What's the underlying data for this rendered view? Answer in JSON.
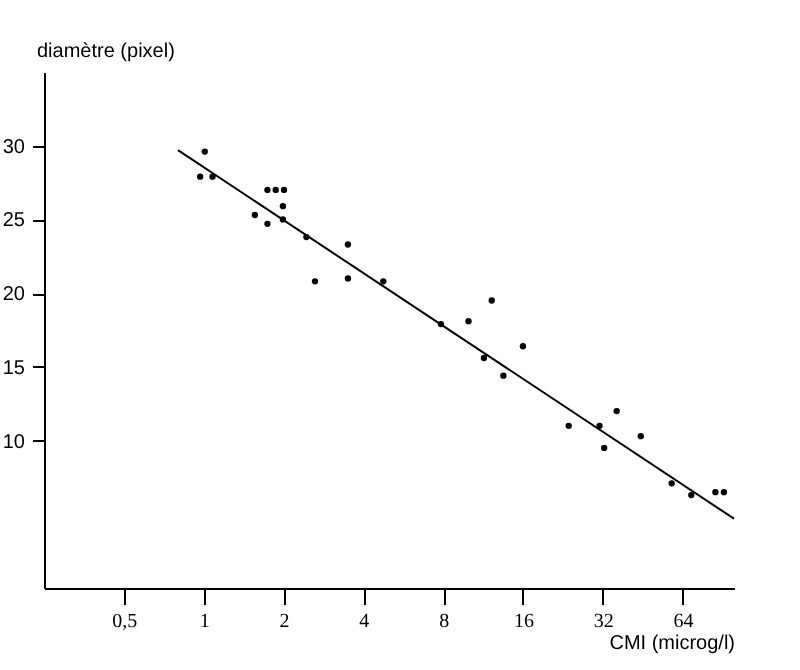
{
  "chart_data": {
    "type": "scatter",
    "xlabel": "CMI (microg/l)",
    "ylabel": "diamètre (pixel)",
    "log": "x",
    "grid": false,
    "xlim": [
      0.25,
      100
    ],
    "ylim": [
      0,
      35
    ],
    "xticks": [
      {
        "value": 0.5,
        "label": "0,5"
      },
      1,
      2,
      4,
      8,
      16,
      32,
      64
    ],
    "yticks": [
      10,
      15,
      20,
      25,
      30
    ],
    "series": [
      {
        "marker": "circle",
        "color": "#000000",
        "x": [
          1.01,
          0.97,
          1.08,
          1.74,
          1.87,
          2.01,
          1.99,
          1.56,
          1.74,
          1.99,
          2.44,
          3.5,
          2.63,
          3.5,
          4.76,
          7.85,
          9.97,
          12.2,
          11.4,
          13.5,
          16.0,
          23.8,
          31.1,
          32.4,
          36.1,
          44.5,
          58.2,
          69.0,
          85.1,
          91.6
        ],
        "values": [
          29.6,
          27.9,
          27.9,
          27.0,
          27.0,
          27.0,
          25.9,
          25.3,
          24.7,
          25.0,
          23.8,
          23.3,
          20.8,
          21.0,
          20.8,
          17.9,
          18.1,
          19.5,
          15.6,
          14.4,
          16.4,
          11.0,
          11.0,
          9.5,
          12.0,
          10.3,
          7.1,
          6.3,
          6.5,
          6.5
        ]
      },
      {
        "type": "line",
        "marker": "none",
        "color": "#000000",
        "x": [
          0.8,
          100
        ],
        "values": [
          29.7,
          4.7
        ]
      }
    ]
  }
}
